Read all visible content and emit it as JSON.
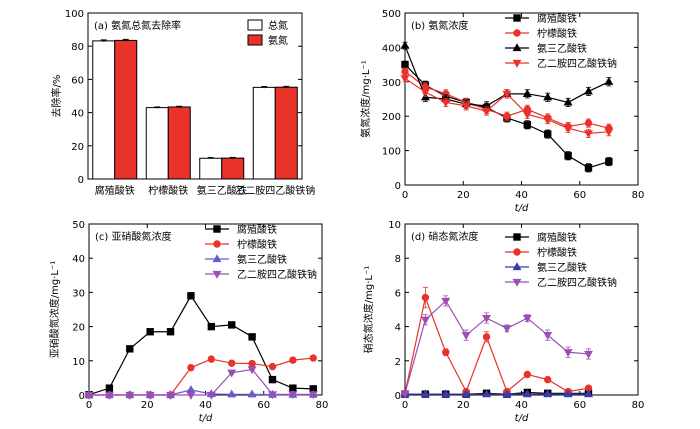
{
  "chart_data": [
    {
      "type": "bar",
      "panel_label": "(a) 氨氮总氮去除率",
      "ylabel": "去除率/%",
      "ylim": [
        0,
        100
      ],
      "yticks": [
        0,
        20,
        40,
        60,
        80,
        100
      ],
      "categories": [
        "腐殖酸铁",
        "柠檬酸铁",
        "氨三乙酸铁",
        "乙二胺四乙酸铁钠"
      ],
      "legend_position": "top-right",
      "series": [
        {
          "name": "总氮",
          "values": [
            83.2,
            43.0,
            12.5,
            55.2
          ],
          "errors": [
            0.6,
            0.4,
            0.4,
            0.5
          ],
          "color": "#ffffff"
        },
        {
          "name": "氨氮",
          "values": [
            83.5,
            43.4,
            12.6,
            55.3
          ],
          "errors": [
            0.6,
            0.4,
            0.4,
            0.5
          ],
          "color": "#e8322a"
        }
      ]
    },
    {
      "type": "line",
      "panel_label": "(b) 氨氮浓度",
      "ylabel": "氨氮浓度/mg·L⁻¹",
      "xlabel": "t/d",
      "xlim": [
        0,
        80
      ],
      "xticks": [
        0,
        20,
        40,
        60,
        80
      ],
      "ylim": [
        0,
        500
      ],
      "yticks": [
        0,
        100,
        200,
        300,
        400,
        500
      ],
      "legend_position": "top-right",
      "series": [
        {
          "name": "腐殖酸铁",
          "color": "#000000",
          "marker": "square",
          "x": [
            0,
            7,
            14,
            21,
            28,
            35,
            42,
            49,
            56,
            63,
            70
          ],
          "y": [
            350,
            290,
            258,
            240,
            225,
            195,
            175,
            148,
            85,
            50,
            68
          ],
          "err": [
            10,
            12,
            12,
            12,
            12,
            12,
            12,
            12,
            12,
            12,
            12
          ]
        },
        {
          "name": "柠檬酸铁",
          "color": "#e8322a",
          "marker": "circle",
          "x": [
            0,
            7,
            14,
            21,
            28,
            35,
            42,
            49,
            56,
            63,
            70
          ],
          "y": [
            330,
            285,
            265,
            240,
            220,
            200,
            220,
            195,
            170,
            180,
            165
          ],
          "err": [
            10,
            12,
            12,
            12,
            12,
            12,
            12,
            12,
            12,
            12,
            12
          ]
        },
        {
          "name": "氨三乙酸铁",
          "color": "#000000",
          "marker": "triangle",
          "x": [
            0,
            7,
            14,
            21,
            28,
            35,
            42,
            49,
            56,
            63,
            70
          ],
          "y": [
            405,
            255,
            250,
            235,
            230,
            265,
            265,
            255,
            240,
            272,
            300
          ],
          "err": [
            10,
            12,
            12,
            12,
            12,
            12,
            12,
            12,
            12,
            12,
            12
          ]
        },
        {
          "name": "乙二胺四乙酸铁钠",
          "color": "#e8322a",
          "marker": "triangle-down",
          "x": [
            0,
            7,
            14,
            21,
            28,
            35,
            42,
            49,
            56,
            63,
            70
          ],
          "y": [
            310,
            270,
            240,
            230,
            215,
            265,
            205,
            190,
            165,
            150,
            155
          ],
          "err": [
            10,
            12,
            12,
            12,
            12,
            12,
            12,
            12,
            12,
            12,
            12
          ]
        }
      ]
    },
    {
      "type": "line",
      "panel_label": "(c) 亚硝酸氮浓度",
      "ylabel": "亚硝酸氮浓度/mg·L⁻¹",
      "xlabel": "t/d",
      "xlim": [
        0,
        80
      ],
      "xticks": [
        0,
        20,
        40,
        60,
        80
      ],
      "ylim": [
        0,
        50
      ],
      "yticks": [
        0,
        10,
        20,
        30,
        40,
        50
      ],
      "legend_position": "top-right",
      "series": [
        {
          "name": "腐殖酸铁",
          "color": "#000000",
          "marker": "square",
          "x": [
            0,
            7,
            14,
            21,
            28,
            35,
            42,
            49,
            56,
            63,
            70,
            77
          ],
          "y": [
            0.1,
            2,
            13.5,
            18.5,
            18.5,
            29,
            20,
            20.5,
            17,
            4.5,
            2,
            1.8
          ],
          "err": [
            0.2,
            0.4,
            0.5,
            0.6,
            0.5,
            0.6,
            0.5,
            0.5,
            0.5,
            0.4,
            0.3,
            0.3
          ]
        },
        {
          "name": "柠檬酸铁",
          "color": "#e8322a",
          "marker": "circle",
          "x": [
            0,
            7,
            14,
            21,
            28,
            35,
            42,
            49,
            56,
            63,
            70,
            77
          ],
          "y": [
            0,
            0,
            0,
            0,
            0,
            8,
            10.5,
            9.3,
            9.2,
            8.3,
            10.2,
            10.8
          ],
          "err": [
            0.1,
            0.1,
            0.1,
            0.1,
            0.1,
            0.3,
            0.4,
            0.3,
            0.3,
            0.3,
            0.3,
            0.3
          ]
        },
        {
          "name": "氨三乙酸铁",
          "color": "#6a5acd",
          "marker": "triangle",
          "x": [
            0,
            7,
            14,
            21,
            28,
            35,
            42,
            49,
            56,
            63,
            70,
            77
          ],
          "y": [
            0,
            0,
            0,
            0,
            0,
            1.5,
            0.3,
            0.2,
            0.2,
            0.1,
            0.1,
            0.1
          ],
          "err": [
            0.1,
            0.1,
            0.1,
            0.1,
            0.1,
            0.2,
            0.1,
            0.1,
            0.1,
            0.1,
            0.1,
            0.1
          ]
        },
        {
          "name": "乙二胺四乙酸铁钠",
          "color": "#9b4fb5",
          "marker": "triangle-down",
          "x": [
            0,
            7,
            14,
            21,
            28,
            35,
            42,
            49,
            56,
            63,
            70,
            77
          ],
          "y": [
            0,
            0,
            0,
            0,
            0,
            0,
            0,
            6.5,
            7.5,
            0.2,
            0.2,
            0.2
          ],
          "err": [
            0.1,
            0.1,
            0.1,
            0.1,
            0.1,
            0.1,
            0.1,
            0.3,
            0.3,
            0.1,
            0.1,
            0.1
          ]
        }
      ]
    },
    {
      "type": "line",
      "panel_label": "(d) 硝态氮浓度",
      "ylabel": "硝态氮浓度/mg·L⁻¹",
      "xlabel": "t/d",
      "xlim": [
        0,
        80
      ],
      "xticks": [
        0,
        20,
        40,
        60,
        80
      ],
      "ylim": [
        0,
        10
      ],
      "yticks": [
        0,
        2,
        4,
        6,
        8,
        10
      ],
      "legend_position": "top-right",
      "series": [
        {
          "name": "腐殖酸铁",
          "color": "#000000",
          "marker": "square",
          "x": [
            0,
            7,
            14,
            21,
            28,
            35,
            42,
            49,
            56,
            63
          ],
          "y": [
            0.05,
            0.05,
            0.05,
            0.05,
            0.1,
            0.05,
            0.15,
            0.1,
            0.1,
            0.1
          ],
          "err": [
            0.05,
            0.05,
            0.05,
            0.05,
            0.05,
            0.05,
            0.05,
            0.05,
            0.05,
            0.05
          ]
        },
        {
          "name": "柠檬酸铁",
          "color": "#e8322a",
          "marker": "circle",
          "x": [
            0,
            7,
            14,
            21,
            28,
            35,
            42,
            49,
            56,
            63
          ],
          "y": [
            0.1,
            5.7,
            2.5,
            0.2,
            3.4,
            0.2,
            1.2,
            0.9,
            0.2,
            0.4
          ],
          "err": [
            0.05,
            0.6,
            0.2,
            0.1,
            0.3,
            0.1,
            0.1,
            0.1,
            0.1,
            0.1
          ]
        },
        {
          "name": "氨三乙酸铁",
          "color": "#3a3ab0",
          "marker": "triangle",
          "x": [
            0,
            7,
            14,
            21,
            28,
            35,
            42,
            49,
            56,
            63
          ],
          "y": [
            0.05,
            0.05,
            0.05,
            0.05,
            0.05,
            0.05,
            0.05,
            0.05,
            0.05,
            0.05
          ],
          "err": [
            0.05,
            0.05,
            0.05,
            0.05,
            0.05,
            0.05,
            0.05,
            0.05,
            0.05,
            0.05
          ]
        },
        {
          "name": "乙二胺四乙酸铁钠",
          "color": "#9b4fb5",
          "marker": "triangle-down",
          "x": [
            0,
            7,
            14,
            21,
            28,
            35,
            42,
            49,
            56,
            63
          ],
          "y": [
            0.1,
            4.4,
            5.5,
            3.5,
            4.5,
            3.9,
            4.5,
            3.5,
            2.5,
            2.4
          ],
          "err": [
            0.05,
            0.3,
            0.3,
            0.3,
            0.3,
            0.2,
            0.2,
            0.3,
            0.3,
            0.3
          ]
        }
      ]
    }
  ]
}
